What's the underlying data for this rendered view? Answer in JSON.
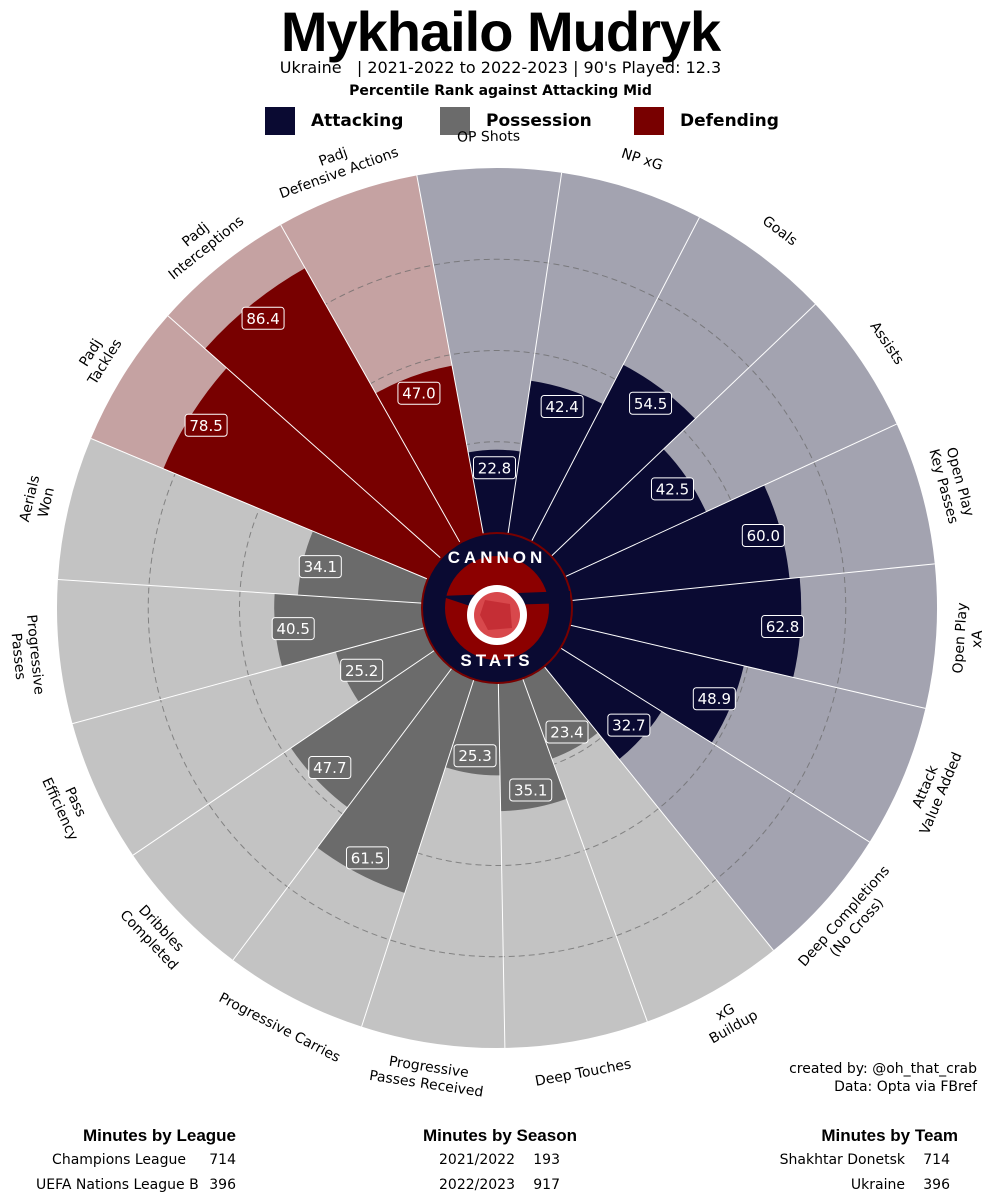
{
  "header": {
    "title": "Mykhailo Mudryk",
    "subtitle": "Ukraine   | 2021-2022 to 2022-2023 | 90's Played: 12.3",
    "rank_line": "Percentile Rank against Attacking Mid"
  },
  "legend": [
    {
      "label": "Attacking",
      "color": "#0a0a32"
    },
    {
      "label": "Possession",
      "color": "#6b6b6b"
    },
    {
      "label": "Defending",
      "color": "#780000"
    }
  ],
  "logo": {
    "top_text": "CANNON",
    "bottom_text": "STATS"
  },
  "chart_data": {
    "type": "polar_bar",
    "title": "Percentile Rank against Attacking Mid",
    "rlim": [
      0,
      100
    ],
    "categories": [
      {
        "label": "OP Shots",
        "group": "Attacking",
        "value": 22.8
      },
      {
        "label": "NP xG",
        "group": "Attacking",
        "value": 42.4
      },
      {
        "label": "Goals",
        "group": "Attacking",
        "value": 54.5
      },
      {
        "label": "Assists",
        "group": "Attacking",
        "value": 42.5
      },
      {
        "label": "Open Play\nKey Passes",
        "group": "Attacking",
        "value": 60.0
      },
      {
        "label": "Open Play\nxA",
        "group": "Attacking",
        "value": 62.8
      },
      {
        "label": "Attack\nValue Added",
        "group": "Attacking",
        "value": 48.9
      },
      {
        "label": "Deep Completions\n(No Cross)",
        "group": "Attacking",
        "value": 32.7
      },
      {
        "label": "xG\nBuildup",
        "group": "Possession",
        "value": 23.4
      },
      {
        "label": "Deep Touches",
        "group": "Possession",
        "value": 35.1
      },
      {
        "label": "Progressive\nPasses Received",
        "group": "Possession",
        "value": 25.3
      },
      {
        "label": "Progressive Carries",
        "group": "Possession",
        "value": 61.5
      },
      {
        "label": "Dribbles\nCompleted",
        "group": "Possession",
        "value": 47.7
      },
      {
        "label": "Pass\nEfficiency",
        "group": "Possession",
        "value": 25.2
      },
      {
        "label": "Progressive\nPasses",
        "group": "Possession",
        "value": 40.5
      },
      {
        "label": "Aerials\nWon",
        "group": "Possession",
        "value": 34.1
      },
      {
        "label": "Padj\nTackles",
        "group": "Defending",
        "value": 78.5
      },
      {
        "label": "Padj\nInterceptions",
        "group": "Defending",
        "value": 86.4
      },
      {
        "label": "Padj\nDefensive Actions",
        "group": "Defending",
        "value": 47.0
      }
    ],
    "colors": {
      "Attacking": {
        "bar": "#0a0a32",
        "background": "#a3a3b0"
      },
      "Possession": {
        "bar": "#6b6b6b",
        "background": "#c3c3c3"
      },
      "Defending": {
        "bar": "#780000",
        "background": "#c5a2a2"
      }
    }
  },
  "credits": {
    "line1": "created by: @oh_that_crab",
    "line2": "Data: Opta via FBref"
  },
  "minutes_by_league": {
    "title": "Minutes by League",
    "rows": [
      {
        "name": "Champions League",
        "minutes": "714"
      },
      {
        "name": "UEFA Nations League B",
        "minutes": "396"
      }
    ]
  },
  "minutes_by_season": {
    "title": "Minutes by Season",
    "rows": [
      {
        "name": "2021/2022",
        "minutes": "193"
      },
      {
        "name": "2022/2023",
        "minutes": "917"
      }
    ]
  },
  "minutes_by_team": {
    "title": "Minutes by Team",
    "rows": [
      {
        "name": "Shakhtar Donetsk",
        "minutes": "714"
      },
      {
        "name": "Ukraine",
        "minutes": "396"
      }
    ]
  }
}
